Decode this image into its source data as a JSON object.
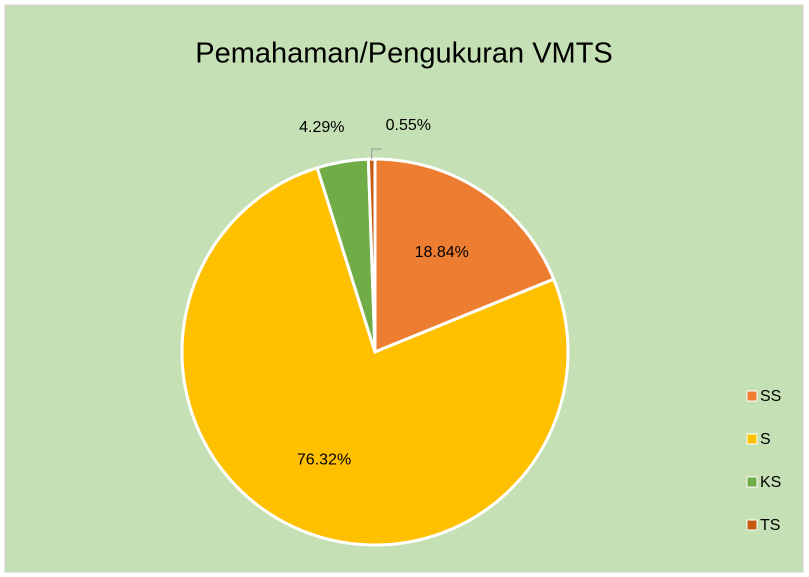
{
  "chart_data": {
    "type": "pie",
    "title": "Pemahaman/Pengukuran VMTS",
    "categories": [
      "SS",
      "S",
      "KS",
      "TS"
    ],
    "values": [
      18.84,
      76.32,
      4.29,
      0.55
    ],
    "value_labels": [
      "18.84%",
      "76.32%",
      "4.29%",
      "0.55%"
    ],
    "colors": [
      "#ed7d31",
      "#ffc000",
      "#70ad47",
      "#c55a11"
    ],
    "legend": "right"
  }
}
